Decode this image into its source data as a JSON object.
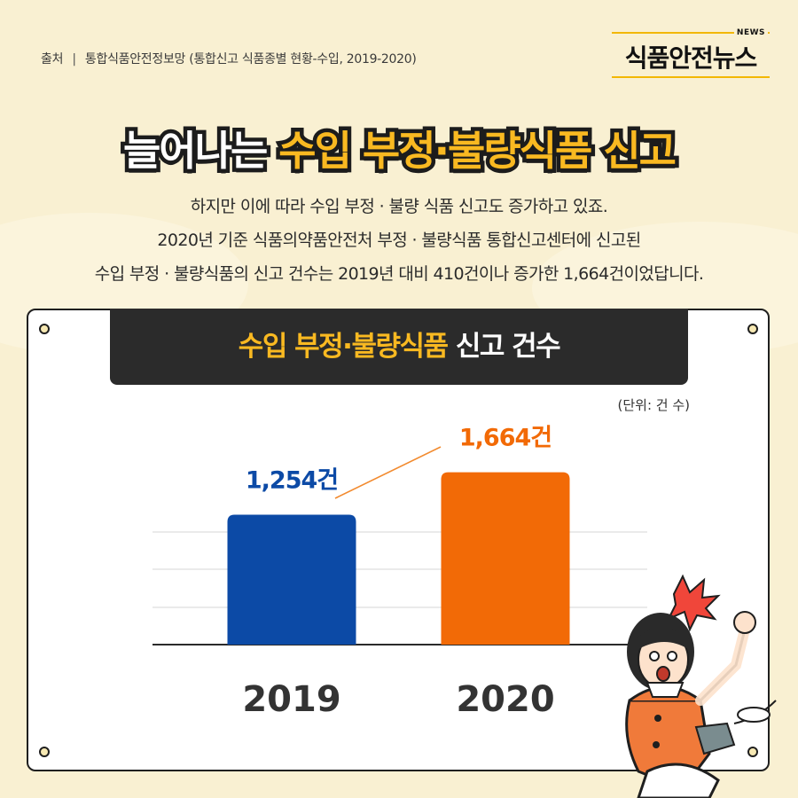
{
  "source": {
    "label": "출처",
    "text": "통합식품안전정보망 (통합신고 식품종별 현황-수입, 2019-2020)"
  },
  "logo": {
    "badge": "NEWS",
    "name": "식품안전뉴스"
  },
  "headline": {
    "part1": "늘어나는",
    "part2": "수입 부정·불량식품 신고"
  },
  "description": [
    "하지만 이에 따라 수입 부정 · 불량 식품 신고도 증가하고 있죠.",
    "2020년 기준 식품의약품안전처 부정 · 불량식품 통합신고센터에 신고된",
    "수입 부정 · 불량식품의 신고 건수는 2019년 대비 410건이나 증가한 1,664건이었답니다."
  ],
  "chart_data": {
    "type": "bar",
    "title_highlight": "수입 부정·불량식품",
    "title_rest": "신고 건수",
    "unit": "(단위: 건 수)",
    "categories": [
      "2019",
      "2020"
    ],
    "values": [
      1254,
      1664
    ],
    "data_labels": [
      "1,254건",
      "1,664건"
    ],
    "colors": [
      "#0c4aa6",
      "#f26a06"
    ],
    "label_colors": [
      "#0c4aa6",
      "#f26a06"
    ],
    "ylim": [
      0,
      1900
    ],
    "grid": true,
    "trend_arrow_color": "#f28a2e"
  }
}
